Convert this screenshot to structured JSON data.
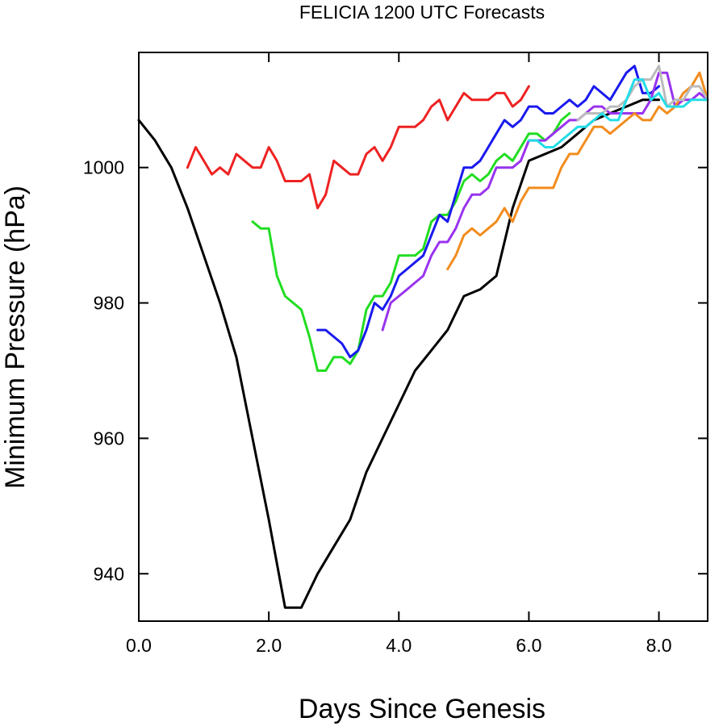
{
  "chart_data": {
    "type": "line",
    "title": "FELICIA 1200 UTC Forecasts",
    "xlabel": "Days Since Genesis",
    "ylabel": "Minimum Pressure (hPa)",
    "xlim": [
      0,
      8.75
    ],
    "ylim": [
      933,
      1017
    ],
    "xticks": [
      0,
      2,
      4,
      6,
      8
    ],
    "xtick_labels": [
      "0.0",
      "2.0",
      "4.0",
      "6.0",
      "8.0"
    ],
    "yticks": [
      940,
      960,
      980,
      1000
    ],
    "ytick_labels": [
      "940",
      "960",
      "980",
      "1000"
    ],
    "grid": false,
    "series": [
      {
        "color": "#000000",
        "x": [
          0,
          0.25,
          0.5,
          0.75,
          1.0,
          1.25,
          1.5,
          1.75,
          2.0,
          2.25,
          2.5,
          2.75,
          3.0,
          3.25,
          3.5,
          3.75,
          4.0,
          4.25,
          4.5,
          4.75,
          5.0,
          5.25,
          5.5,
          5.75,
          6.0,
          6.25,
          6.5,
          6.75,
          7.0,
          7.25,
          7.5,
          7.75,
          8.0
        ],
        "values": [
          1007,
          1004,
          1000,
          994,
          987,
          980,
          972,
          960,
          948,
          935,
          935,
          940,
          944,
          948,
          955,
          960,
          965,
          970,
          973,
          976,
          981,
          982,
          984,
          994,
          1001,
          1002,
          1003,
          1005,
          1007,
          1008,
          1009,
          1010,
          1010
        ]
      },
      {
        "color": "#ee2222",
        "x": [
          0.75,
          0.875,
          1.0,
          1.125,
          1.25,
          1.375,
          1.5,
          1.625,
          1.75,
          1.875,
          2.0,
          2.125,
          2.25,
          2.375,
          2.5,
          2.625,
          2.75,
          2.875,
          3.0,
          3.125,
          3.25,
          3.375,
          3.5,
          3.625,
          3.75,
          3.875,
          4.0,
          4.125,
          4.25,
          4.375,
          4.5,
          4.625,
          4.75,
          4.875,
          5.0,
          5.125,
          5.25,
          5.375,
          5.5,
          5.625,
          5.75,
          5.875,
          6.0
        ],
        "values": [
          1000,
          1003,
          1001,
          999,
          1000,
          999,
          1002,
          1001,
          1000,
          1000,
          1003,
          1001,
          998,
          998,
          998,
          999,
          994,
          996,
          1001,
          1000,
          999,
          999,
          1002,
          1003,
          1001,
          1003,
          1006,
          1006,
          1006,
          1007,
          1009,
          1010,
          1007,
          1009,
          1011,
          1010,
          1010,
          1010,
          1011,
          1011,
          1009,
          1010,
          1012
        ]
      },
      {
        "color": "#22dd22",
        "x": [
          1.75,
          1.875,
          2.0,
          2.125,
          2.25,
          2.375,
          2.5,
          2.625,
          2.75,
          2.875,
          3.0,
          3.125,
          3.25,
          3.375,
          3.5,
          3.625,
          3.75,
          3.875,
          4.0,
          4.125,
          4.25,
          4.375,
          4.5,
          4.625,
          4.75,
          4.875,
          5.0,
          5.125,
          5.25,
          5.375,
          5.5,
          5.625,
          5.75,
          5.875,
          6.0,
          6.125,
          6.25,
          6.375,
          6.5,
          6.625
        ],
        "values": [
          992,
          991,
          991,
          984,
          981,
          980,
          979,
          975,
          970,
          970,
          972,
          972,
          971,
          973,
          979,
          981,
          981,
          983,
          987,
          987,
          987,
          988,
          992,
          993,
          993,
          995,
          998,
          999,
          998,
          999,
          1001,
          1002,
          1001,
          1003,
          1005,
          1005,
          1004,
          1005,
          1007,
          1008
        ]
      },
      {
        "color": "#1a1aee",
        "x": [
          2.75,
          2.875,
          3.0,
          3.125,
          3.25,
          3.375,
          3.5,
          3.625,
          3.75,
          3.875,
          4.0,
          4.125,
          4.25,
          4.375,
          4.5,
          4.625,
          4.75,
          4.875,
          5.0,
          5.125,
          5.25,
          5.375,
          5.5,
          5.625,
          5.75,
          5.875,
          6.0,
          6.125,
          6.25,
          6.375,
          6.5,
          6.625,
          6.75,
          6.875,
          7.0,
          7.125,
          7.25,
          7.375,
          7.5,
          7.625,
          7.75,
          7.875,
          8.0
        ],
        "values": [
          976,
          976,
          975,
          974,
          972,
          973,
          976,
          980,
          979,
          981,
          984,
          985,
          986,
          987,
          990,
          993,
          992,
          996,
          1000,
          1000,
          1001,
          1003,
          1005,
          1007,
          1006,
          1007,
          1009,
          1009,
          1008,
          1008,
          1009,
          1010,
          1009,
          1010,
          1012,
          1011,
          1010,
          1012,
          1014,
          1015,
          1011,
          1011,
          1012
        ]
      },
      {
        "color": "#9933ee",
        "x": [
          3.75,
          3.875,
          4.0,
          4.125,
          4.25,
          4.375,
          4.5,
          4.625,
          4.75,
          4.875,
          5.0,
          5.125,
          5.25,
          5.375,
          5.5,
          5.625,
          5.75,
          5.875,
          6.0,
          6.125,
          6.25,
          6.375,
          6.5,
          6.625,
          6.75,
          6.875,
          7.0,
          7.125,
          7.25,
          7.375,
          7.5,
          7.625,
          7.75,
          7.875,
          8.0,
          8.125,
          8.25,
          8.375,
          8.5,
          8.625,
          8.75
        ],
        "values": [
          976,
          980,
          981,
          982,
          983,
          984,
          987,
          989,
          989,
          991,
          994,
          996,
          996,
          997,
          1000,
          1000,
          1000,
          1001,
          1004,
          1004,
          1004,
          1005,
          1006,
          1007,
          1007,
          1008,
          1009,
          1009,
          1008,
          1008,
          1008,
          1008,
          1008,
          1010,
          1014,
          1014,
          1009,
          1010,
          1010,
          1011,
          1010
        ]
      },
      {
        "color": "#f28c1e",
        "x": [
          4.75,
          4.875,
          5.0,
          5.125,
          5.25,
          5.375,
          5.5,
          5.625,
          5.75,
          5.875,
          6.0,
          6.125,
          6.25,
          6.375,
          6.5,
          6.625,
          6.75,
          6.875,
          7.0,
          7.125,
          7.25,
          7.375,
          7.5,
          7.625,
          7.75,
          7.875,
          8.0,
          8.125,
          8.25,
          8.375,
          8.5,
          8.625,
          8.75
        ],
        "values": [
          985,
          987,
          990,
          991,
          990,
          991,
          992,
          994,
          992,
          995,
          997,
          997,
          997,
          997,
          1000,
          1002,
          1002,
          1004,
          1006,
          1006,
          1005,
          1006,
          1007,
          1008,
          1007,
          1007,
          1009,
          1008,
          1009,
          1011,
          1012,
          1014,
          1010
        ]
      },
      {
        "color": "#bbbbbb",
        "x": [
          6.75,
          6.875,
          7.0,
          7.125,
          7.25,
          7.375,
          7.5,
          7.625,
          7.75,
          7.875,
          8.0,
          8.125,
          8.25,
          8.375,
          8.5,
          8.625,
          8.75
        ],
        "values": [
          1007,
          1008,
          1008,
          1008,
          1009,
          1009,
          1010,
          1012,
          1013,
          1013,
          1015,
          1009,
          1010,
          1010,
          1012,
          1012,
          1010
        ]
      },
      {
        "color": "#22dde8",
        "x": [
          6.0,
          6.125,
          6.25,
          6.375,
          6.5,
          6.625,
          6.75,
          6.875,
          7.0,
          7.125,
          7.25,
          7.375,
          7.5,
          7.625,
          7.75,
          7.875,
          8.0,
          8.125,
          8.25,
          8.375,
          8.5,
          8.625,
          8.75
        ],
        "values": [
          1004,
          1004,
          1003,
          1003,
          1004,
          1005,
          1006,
          1006,
          1007,
          1008,
          1007,
          1007,
          1010,
          1013,
          1013,
          1010,
          1011,
          1009,
          1009,
          1009,
          1010,
          1010,
          1010
        ]
      }
    ]
  }
}
